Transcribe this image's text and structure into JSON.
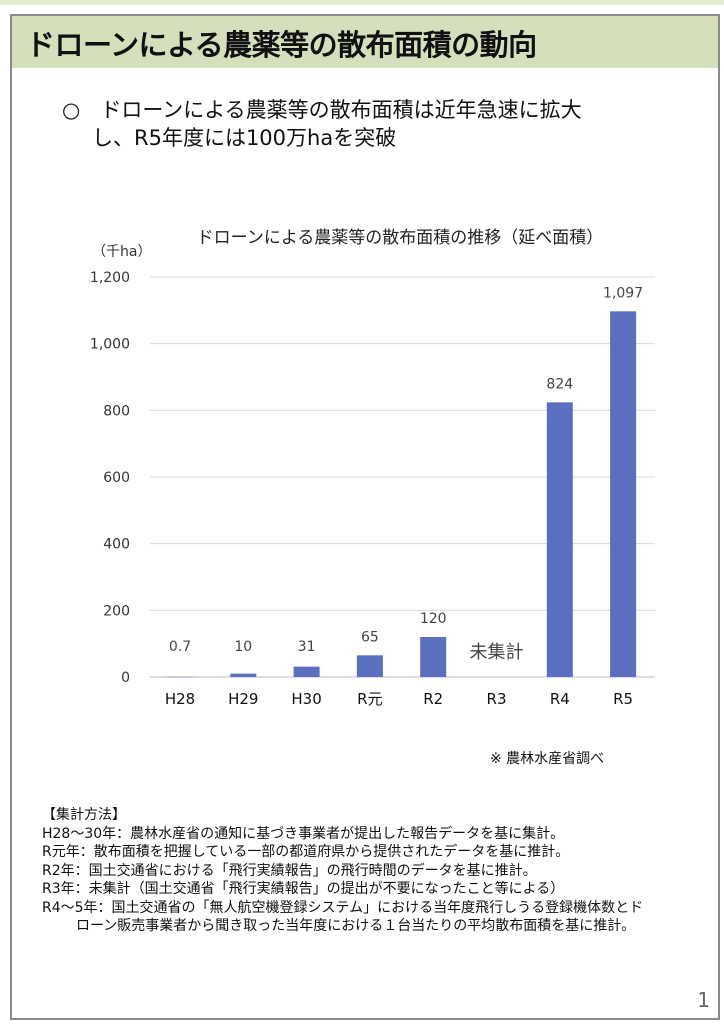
{
  "header": {
    "title": "ドローンによる農薬等の散布面積の動向"
  },
  "lead": {
    "bullet": "○",
    "line1": "ドローンによる農薬等の散布面積は近年急速に拡大",
    "line2": "し、R5年度には100万haを突破"
  },
  "chart_data": {
    "type": "bar",
    "title": "ドローンによる農薬等の散布面積の推移（延べ面積）",
    "ylabel": "（千ha）",
    "xlabel": "",
    "categories": [
      "H28",
      "H29",
      "H30",
      "R元",
      "R2",
      "R3",
      "R4",
      "R5"
    ],
    "values": [
      0.7,
      10,
      31,
      65,
      120,
      null,
      824,
      1097
    ],
    "data_labels": [
      "0.7",
      "10",
      "31",
      "65",
      "120",
      "未集計",
      "824",
      "1,097"
    ],
    "ylim": [
      0,
      1200
    ],
    "yticks": [
      0,
      200,
      400,
      600,
      800,
      1000,
      1200
    ],
    "ytick_labels": [
      "0",
      "200",
      "400",
      "600",
      "800",
      "1,000",
      "1,200"
    ],
    "grid": true,
    "bar_color": "#5b6fc1"
  },
  "note": "※ 農林水産省調べ",
  "method": {
    "heading": "【集計方法】",
    "lines": [
      "H28～30年：農林水産省の通知に基づき事業者が提出した報告データを基に集計。",
      "R元年：散布面積を把握している一部の都道府県から提供されたデータを基に推計。",
      "R2年：国土交通省における「飛行実績報告」の飛行時間のデータを基に推計。",
      "R3年：未集計（国土交通省「飛行実績報告」の提出が不要になったこと等による）",
      "R4～5年：国土交通省の「無人航空機登録システム」における当年度飛行しうる登録機体数とド",
      "ローン販売事業者から聞き取った当年度における１台当たりの平均散布面積を基に推計。"
    ]
  },
  "page_number": "1"
}
